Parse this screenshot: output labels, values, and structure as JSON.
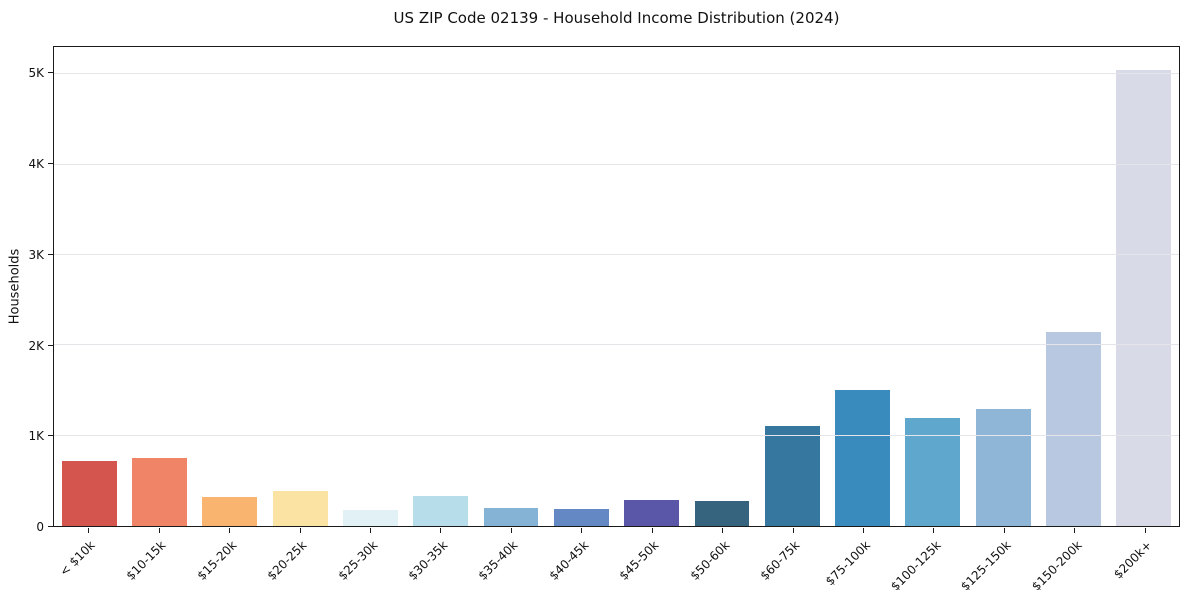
{
  "chart_data": {
    "type": "bar",
    "title": "US ZIP Code 02139 - Household Income Distribution (2024)",
    "xlabel": "",
    "ylabel": "Households",
    "categories": [
      "< $10k",
      "$10-15k",
      "$15-20k",
      "$20-25k",
      "$25-30k",
      "$30-35k",
      "$35-40k",
      "$40-45k",
      "$45-50k",
      "$50-60k",
      "$60-75k",
      "$75-100k",
      "$100-125k",
      "$125-150k",
      "$150-200k",
      "$200k+"
    ],
    "values": [
      720,
      750,
      320,
      385,
      180,
      330,
      195,
      185,
      290,
      280,
      1110,
      1500,
      1200,
      1300,
      2150,
      5050
    ],
    "bar_colors": [
      "#d4544e",
      "#f08466",
      "#f9b56f",
      "#fbe3a3",
      "#e2f1f5",
      "#b7dcea",
      "#85b3d6",
      "#6488c3",
      "#5a57a8",
      "#36647e",
      "#35779f",
      "#388bbc",
      "#5fa7cd",
      "#90b6d7",
      "#b8c8e0",
      "#d8dae7"
    ],
    "ylim": [
      0,
      5300
    ],
    "yticks": [
      {
        "value": 0,
        "label": "0"
      },
      {
        "value": 1000,
        "label": "1K"
      },
      {
        "value": 2000,
        "label": "2K"
      },
      {
        "value": 3000,
        "label": "3K"
      },
      {
        "value": 4000,
        "label": "4K"
      },
      {
        "value": 5000,
        "label": "5K"
      }
    ],
    "grid": "horizontal, drawn above bars",
    "legend": "none",
    "colors": {
      "background": "#ffffff",
      "grid": "#e4e4e9",
      "spine": "#1a1a1a",
      "text": "#111111"
    }
  }
}
